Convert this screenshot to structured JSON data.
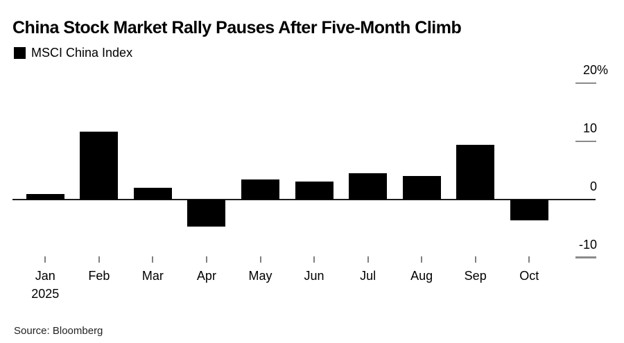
{
  "chart_data": {
    "type": "bar",
    "title": "China Stock Market Rally Pauses After Five-Month Climb",
    "legend": [
      {
        "label": "MSCI China Index",
        "color": "#000000"
      }
    ],
    "legend_position": "top-left",
    "categories": [
      "Jan",
      "Feb",
      "Mar",
      "Apr",
      "May",
      "Jun",
      "Jul",
      "Aug",
      "Sep",
      "Oct"
    ],
    "x_axis_sublabel": "2025",
    "values": [
      1.0,
      11.7,
      2.0,
      -4.7,
      3.5,
      3.1,
      4.5,
      4.1,
      9.4,
      -3.6
    ],
    "unit": "%",
    "xlabel": "",
    "ylabel": "",
    "ylim": [
      -13,
      23
    ],
    "yticks": [
      {
        "value": 20,
        "label": "20",
        "suffix": "%"
      },
      {
        "value": 10,
        "label": "10",
        "suffix": ""
      },
      {
        "value": 0,
        "label": "0",
        "suffix": ""
      },
      {
        "value": -10,
        "label": "-10",
        "suffix": ""
      }
    ],
    "grid": "short right-edge dashes at y ticks, solid zero baseline",
    "bar_color": "#000000",
    "axis_color": "#1c1c1c",
    "tick_color": "#8a8a8a"
  },
  "footer": {
    "source": "Source: Bloomberg"
  }
}
